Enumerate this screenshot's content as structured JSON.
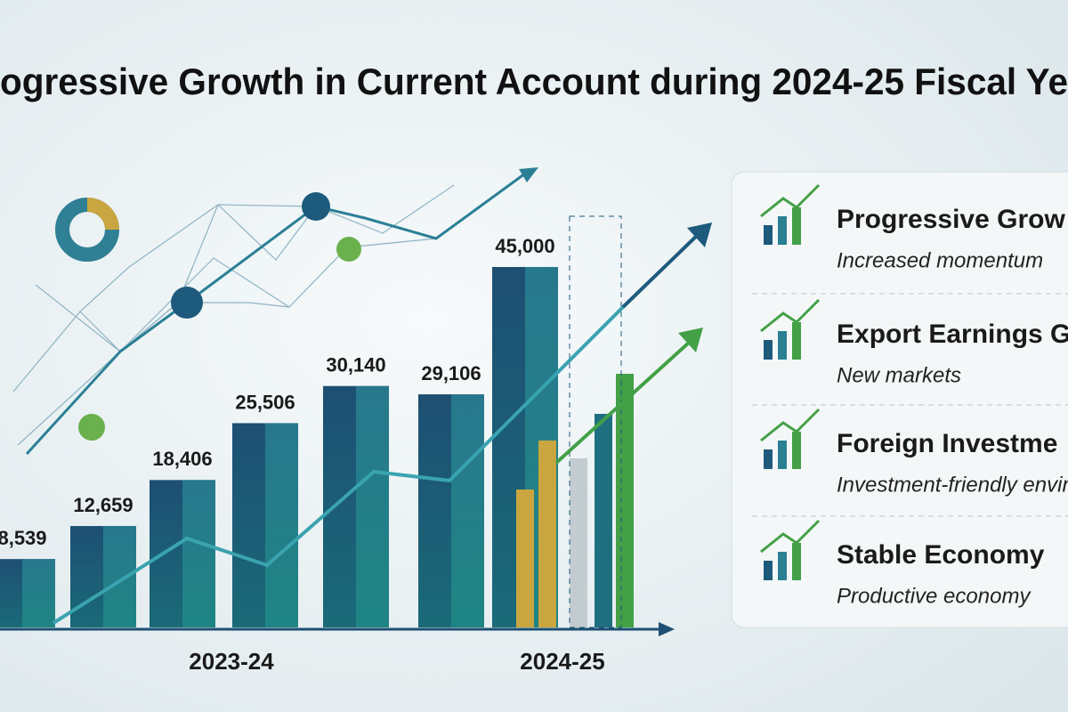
{
  "chart_data": {
    "type": "bar",
    "title": "ogressive Growth in Current Account during 2024-25 Fiscal Ye",
    "categories": [
      null,
      null,
      null,
      null,
      null,
      null,
      null
    ],
    "values": [
      8539,
      12659,
      18406,
      25506,
      30140,
      29106,
      45000
    ],
    "value_labels": [
      "8,539",
      "12,659",
      "18,406",
      "25,506",
      "30,140",
      "29,106",
      "45,000"
    ],
    "color": "#1f5a7a",
    "ylim": [
      0,
      45000
    ],
    "period_labels": [
      "2023-24",
      "2024-25"
    ]
  },
  "panel": {
    "items": [
      {
        "title": "Progressive Grow",
        "subtitle": "Increased momentum"
      },
      {
        "title": "Export Earnings Gr",
        "subtitle": "New markets"
      },
      {
        "title": "Foreign Investme",
        "subtitle": "Investment-friendly enviro"
      },
      {
        "title": "Stable Economy",
        "subtitle": "Productive economy"
      }
    ]
  }
}
